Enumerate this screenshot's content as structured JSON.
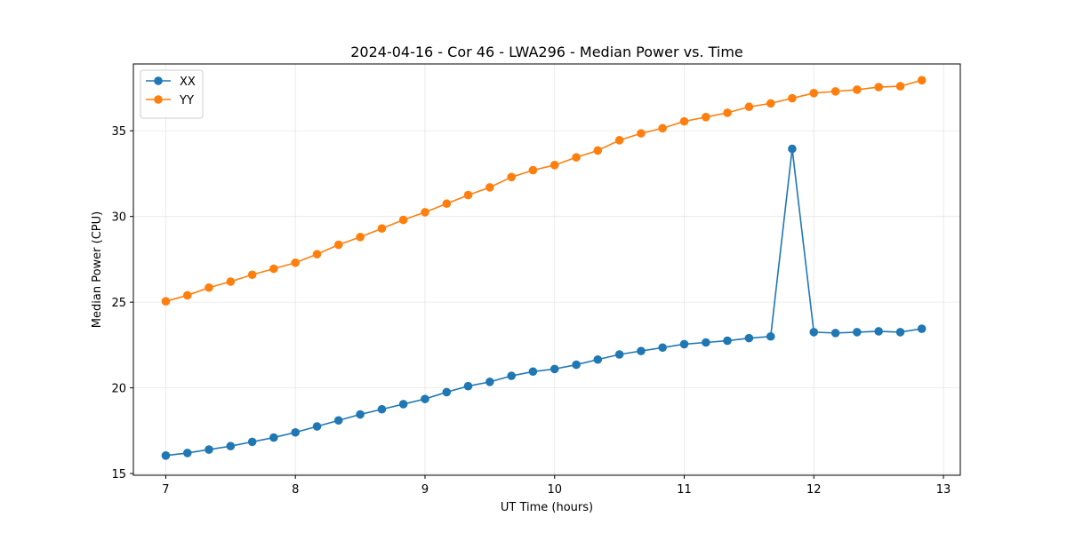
{
  "chart_data": {
    "type": "line",
    "title": "2024-04-16 - Cor 46 - LWA296 - Median Power vs. Time",
    "xlabel": "UT Time (hours)",
    "ylabel": "Median Power (CPU)",
    "xlim": [
      6.75,
      13.13
    ],
    "ylim": [
      14.9,
      38.9
    ],
    "xticks": [
      7,
      8,
      9,
      10,
      11,
      12,
      13
    ],
    "yticks": [
      15,
      20,
      25,
      30,
      35
    ],
    "grid": true,
    "legend_position": "top-left",
    "x": [
      7.0,
      7.167,
      7.333,
      7.5,
      7.667,
      7.833,
      8.0,
      8.167,
      8.333,
      8.5,
      8.667,
      8.833,
      9.0,
      9.167,
      9.333,
      9.5,
      9.667,
      9.833,
      10.0,
      10.167,
      10.333,
      10.5,
      10.667,
      10.833,
      11.0,
      11.167,
      11.333,
      11.5,
      11.667,
      11.833,
      12.0,
      12.167,
      12.333,
      12.5,
      12.667,
      12.833
    ],
    "series": [
      {
        "name": "XX",
        "color": "#1f77b4",
        "values": [
          16.05,
          16.2,
          16.4,
          16.6,
          16.85,
          17.1,
          17.4,
          17.75,
          18.1,
          18.45,
          18.75,
          19.05,
          19.35,
          19.75,
          20.1,
          20.35,
          20.7,
          20.95,
          21.1,
          21.35,
          21.65,
          21.95,
          22.15,
          22.35,
          22.55,
          22.65,
          22.75,
          22.9,
          23.0,
          33.95,
          23.25,
          23.2,
          23.25,
          23.3,
          23.25,
          23.45
        ]
      },
      {
        "name": "YY",
        "color": "#ff7f0e",
        "values": [
          25.05,
          25.4,
          25.85,
          26.2,
          26.6,
          26.95,
          27.3,
          27.8,
          28.35,
          28.8,
          29.3,
          29.8,
          30.25,
          30.75,
          31.25,
          31.7,
          32.3,
          32.7,
          33.0,
          33.45,
          33.85,
          34.45,
          34.85,
          35.15,
          35.55,
          35.8,
          36.05,
          36.4,
          36.6,
          36.9,
          37.2,
          37.3,
          37.4,
          37.55,
          37.6,
          37.95
        ]
      }
    ]
  }
}
